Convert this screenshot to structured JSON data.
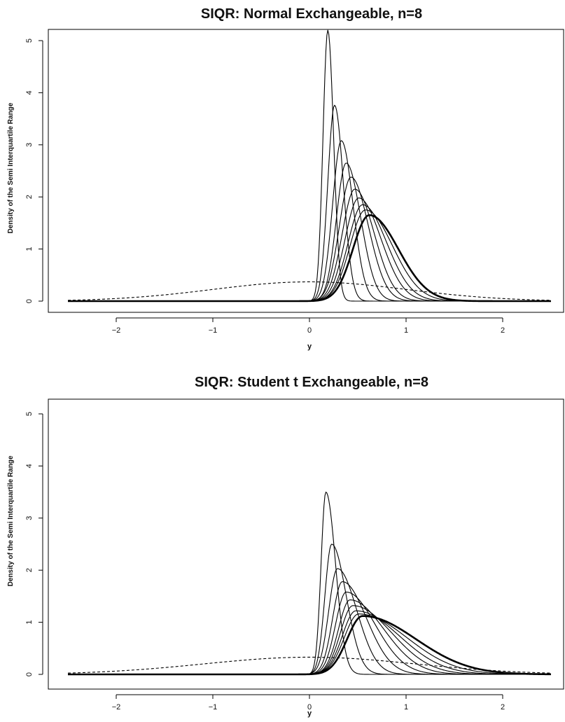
{
  "chart_data": [
    {
      "type": "line",
      "title": "SIQR: Normal Exchangeable, n=8",
      "xlabel": "y",
      "ylabel": "Density of the Semi Interquartile Range",
      "xlim": [
        -2.5,
        2.5
      ],
      "ylim": [
        0,
        5
      ],
      "x_ticks": [
        -2,
        -1,
        0,
        1,
        2
      ],
      "x_tick_labels": [
        "−2",
        "−1",
        "0",
        "1",
        "2"
      ],
      "y_ticks": [
        0,
        1,
        2,
        3,
        4,
        5
      ],
      "grid": false,
      "legend": "none",
      "series": [
        {
          "style": "solid",
          "mode": 0.19,
          "peak": 5.2,
          "left_width": 0.05,
          "right_width": 0.06
        },
        {
          "style": "solid",
          "mode": 0.26,
          "peak": 3.76,
          "left_width": 0.07,
          "right_width": 0.09
        },
        {
          "style": "solid",
          "mode": 0.33,
          "peak": 3.08,
          "left_width": 0.09,
          "right_width": 0.12
        },
        {
          "style": "solid",
          "mode": 0.38,
          "peak": 2.65,
          "left_width": 0.1,
          "right_width": 0.15
        },
        {
          "style": "solid",
          "mode": 0.43,
          "peak": 2.38,
          "left_width": 0.12,
          "right_width": 0.18
        },
        {
          "style": "solid",
          "mode": 0.47,
          "peak": 2.15,
          "left_width": 0.13,
          "right_width": 0.2
        },
        {
          "style": "solid",
          "mode": 0.51,
          "peak": 1.98,
          "left_width": 0.14,
          "right_width": 0.23
        },
        {
          "style": "solid",
          "mode": 0.55,
          "peak": 1.85,
          "left_width": 0.15,
          "right_width": 0.25
        },
        {
          "style": "solid",
          "mode": 0.58,
          "peak": 1.75,
          "left_width": 0.16,
          "right_width": 0.28
        },
        {
          "style": "bold",
          "mode": 0.62,
          "peak": 1.65,
          "left_width": 0.17,
          "right_width": 0.3
        },
        {
          "style": "dashed",
          "mode": 0.0,
          "peak": 0.37,
          "left_width": 1.0,
          "right_width": 1.0
        }
      ]
    },
    {
      "type": "line",
      "title": "SIQR: Student t Exchangeable, n=8",
      "xlabel": "y",
      "ylabel": "Density of the Semi Interquartile Range",
      "xlim": [
        -2.5,
        2.5
      ],
      "ylim": [
        0,
        5
      ],
      "x_ticks": [
        -2,
        -1,
        0,
        1,
        2
      ],
      "x_tick_labels": [
        "−2",
        "−1",
        "0",
        "1",
        "2"
      ],
      "y_ticks": [
        0,
        1,
        2,
        3,
        4,
        5
      ],
      "grid": false,
      "legend": "none",
      "series": [
        {
          "style": "solid",
          "mode": 0.17,
          "peak": 3.5,
          "left_width": 0.05,
          "right_width": 0.1
        },
        {
          "style": "solid",
          "mode": 0.23,
          "peak": 2.5,
          "left_width": 0.07,
          "right_width": 0.15
        },
        {
          "style": "solid",
          "mode": 0.29,
          "peak": 2.03,
          "left_width": 0.09,
          "right_width": 0.2
        },
        {
          "style": "solid",
          "mode": 0.34,
          "peak": 1.78,
          "left_width": 0.1,
          "right_width": 0.25
        },
        {
          "style": "solid",
          "mode": 0.38,
          "peak": 1.58,
          "left_width": 0.11,
          "right_width": 0.3
        },
        {
          "style": "solid",
          "mode": 0.42,
          "peak": 1.43,
          "left_width": 0.12,
          "right_width": 0.35
        },
        {
          "style": "solid",
          "mode": 0.45,
          "peak": 1.32,
          "left_width": 0.13,
          "right_width": 0.4
        },
        {
          "style": "solid",
          "mode": 0.48,
          "peak": 1.22,
          "left_width": 0.14,
          "right_width": 0.45
        },
        {
          "style": "solid",
          "mode": 0.51,
          "peak": 1.16,
          "left_width": 0.15,
          "right_width": 0.5
        },
        {
          "style": "bold",
          "mode": 0.55,
          "peak": 1.12,
          "left_width": 0.16,
          "right_width": 0.55
        },
        {
          "style": "dashed",
          "mode": 0.0,
          "peak": 0.33,
          "left_width": 1.1,
          "right_width": 1.1
        }
      ]
    }
  ]
}
